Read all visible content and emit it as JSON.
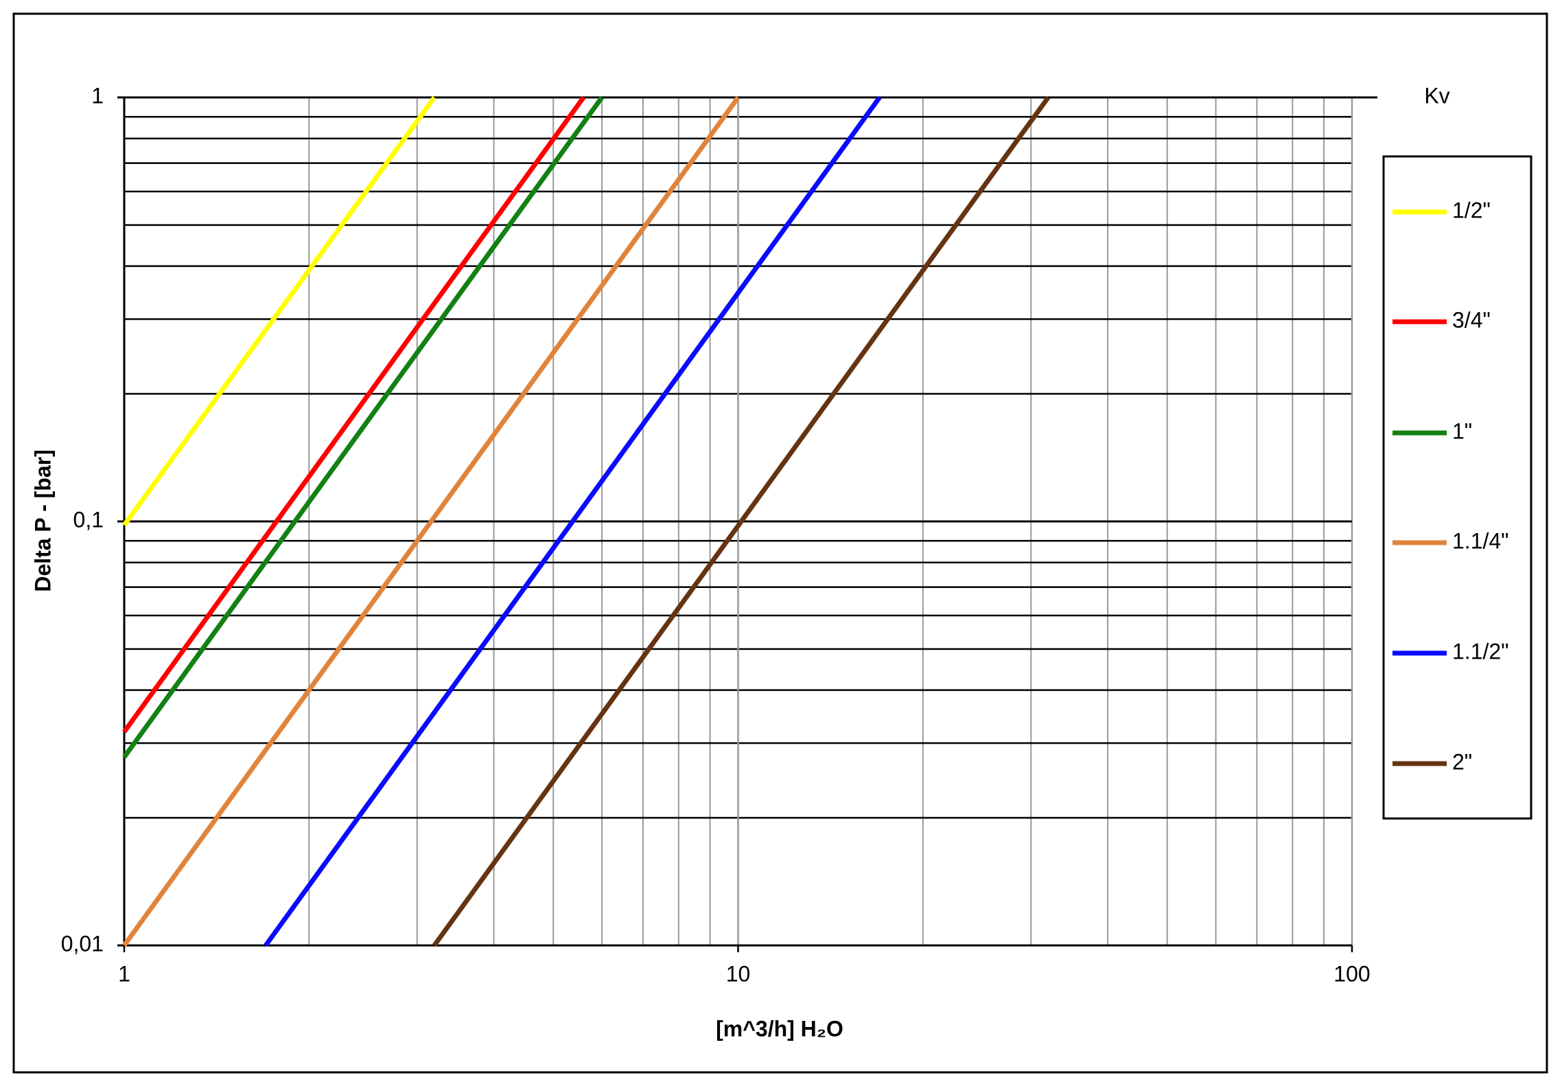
{
  "chart_data": {
    "type": "line",
    "x_label": "[m^3/h] H₂O",
    "y_label": "Delta P - [bar]",
    "legend_title": "Kv",
    "legend": "right",
    "log_x": true,
    "log_y": true,
    "grid": true,
    "minor_grid": true,
    "xlim": [
      1,
      100
    ],
    "xticks": [
      1,
      10,
      100
    ],
    "ylim": [
      0.01,
      1
    ],
    "yticks": [
      {
        "value": 0.01,
        "label": "0,01"
      },
      {
        "value": 0.1,
        "label": "0,1"
      },
      {
        "value": 1,
        "label": "1"
      }
    ],
    "series": [
      {
        "name": "1/2\"",
        "color": "#ffff00",
        "x": [
          1,
          3.2
        ],
        "values": [
          0.098,
          1
        ]
      },
      {
        "name": "3/4\"",
        "color": "#ff0000",
        "x": [
          1,
          5.6
        ],
        "values": [
          0.0319,
          1
        ]
      },
      {
        "name": "1\"",
        "color": "#138013",
        "x": [
          1,
          6
        ],
        "values": [
          0.0278,
          1
        ]
      },
      {
        "name": "1.1/4\"",
        "color": "#e0843c",
        "x": [
          1,
          10
        ],
        "values": [
          0.01,
          1
        ]
      },
      {
        "name": "1.1/2\"",
        "color": "#0a0aff",
        "x": [
          1.7,
          17
        ],
        "values": [
          0.01,
          1
        ]
      },
      {
        "name": "2\"",
        "color": "#663311",
        "x": [
          3.2,
          32
        ],
        "values": [
          0.01,
          1
        ]
      }
    ]
  }
}
